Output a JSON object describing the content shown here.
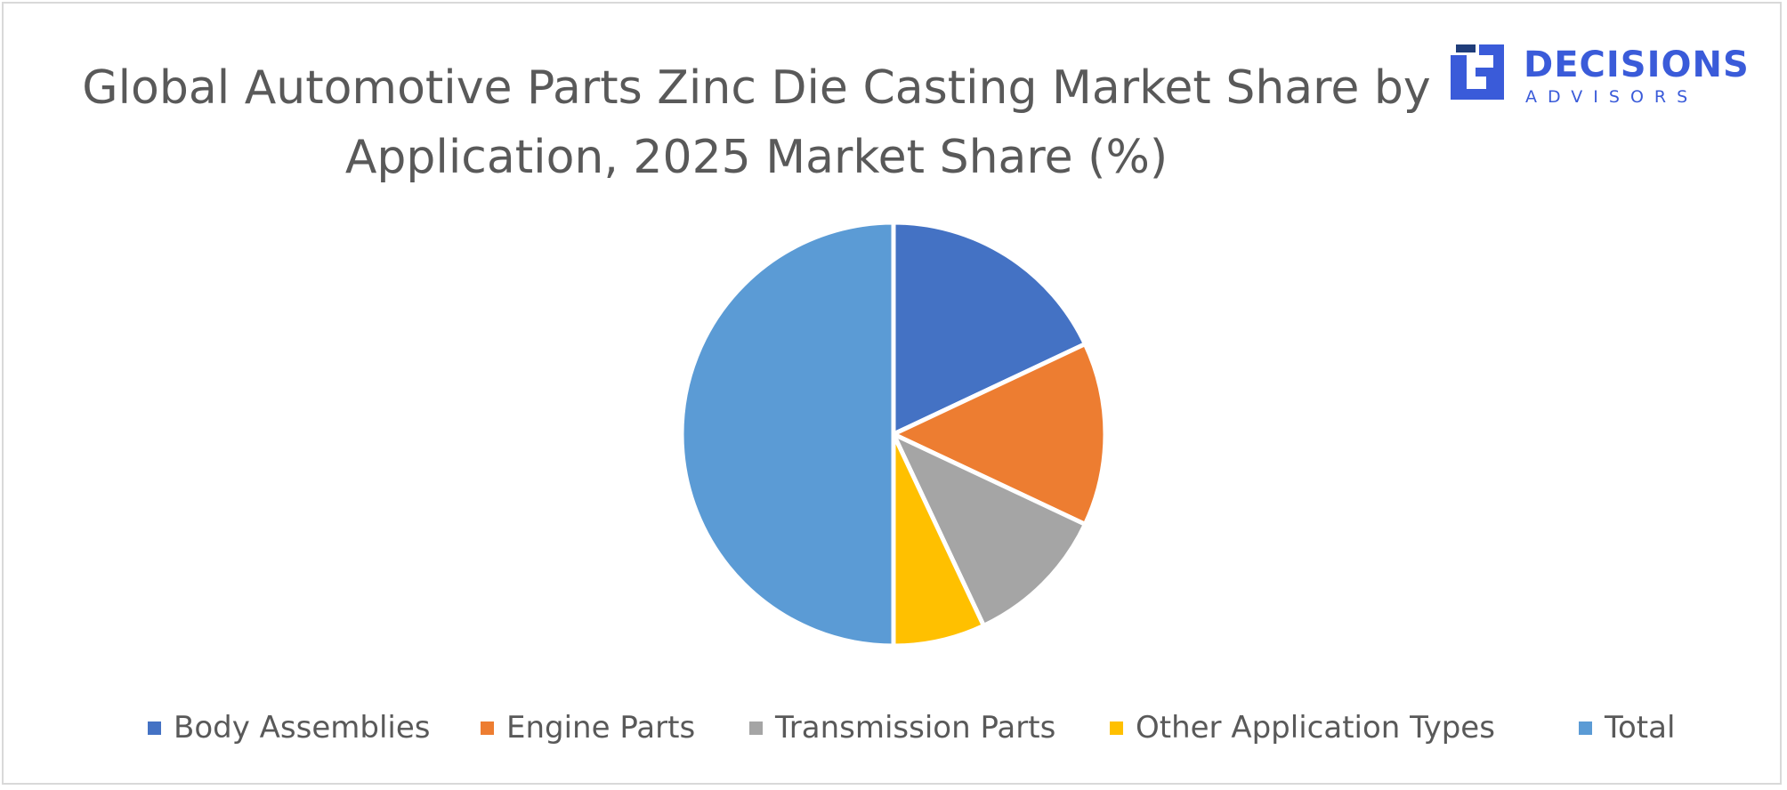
{
  "title": "Global Automotive Parts Zinc Die Casting Market Share by Application, 2025 Market Share (%)",
  "logo": {
    "main": "DECISIONS",
    "sub": "ADVISORS",
    "color": "#3a5bd9"
  },
  "chart_data": {
    "type": "pie",
    "title": "Global Automotive Parts Zinc Die Casting Market Share by Application, 2025 Market Share (%)",
    "legend_position": "bottom",
    "slices": [
      {
        "label": "Body Assemblies",
        "value": 18,
        "color": "#4472c4"
      },
      {
        "label": "Engine Parts",
        "value": 14,
        "color": "#ed7d31"
      },
      {
        "label": "Transmission Parts",
        "value": 11,
        "color": "#a5a5a5"
      },
      {
        "label": "Other Application Types",
        "value": 7,
        "color": "#ffc000"
      },
      {
        "label": "Total",
        "value": 50,
        "color": "#5b9bd5"
      }
    ]
  }
}
